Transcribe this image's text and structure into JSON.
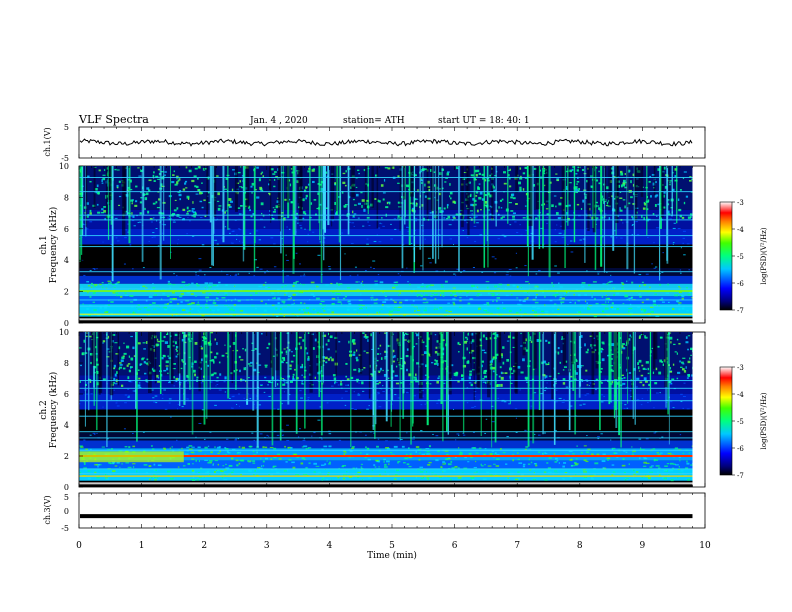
{
  "header": {
    "title": "VLF  Spectra",
    "date": "Jan. 4  , 2020",
    "station": "station= ATH",
    "start": "start  UT  =   18: 40: 1"
  },
  "chart_data": [
    {
      "type": "line",
      "name": "ch1-waveform",
      "ylabel": "ch.1(V)",
      "ylim": [
        -5,
        5
      ],
      "yticks": [
        5,
        -5
      ],
      "xlim": [
        0,
        10
      ],
      "trace_level": 0,
      "trace_span_min": [
        0,
        9.8
      ]
    },
    {
      "type": "heatmap",
      "name": "ch1-spectrogram",
      "ylabel": "ch.1\nFrequency  (kHz)",
      "ylim": [
        0,
        10
      ],
      "yticks": [
        0,
        2,
        4,
        6,
        8,
        10
      ],
      "xlim": [
        0,
        10
      ],
      "data_span_min": [
        0,
        9.8
      ],
      "colorbar": {
        "label": "log(PSD)(V²/Hz)",
        "range": [
          -7,
          -3
        ],
        "ticks": [
          "-3",
          "-4",
          "-5",
          "-6",
          "-7"
        ]
      }
    },
    {
      "type": "heatmap",
      "name": "ch2-spectrogram",
      "ylabel": "ch.2\nFrequency  (kHz)",
      "ylim": [
        0,
        10
      ],
      "yticks": [
        0,
        2,
        4,
        6,
        8,
        10
      ],
      "xlim": [
        0,
        10
      ],
      "data_span_min": [
        0,
        9.8
      ],
      "colorbar": {
        "label": "log(PSD)(V²/Hz)",
        "range": [
          -7,
          -3
        ],
        "ticks": [
          "-3",
          "-4",
          "-5",
          "-6",
          "-7"
        ]
      }
    },
    {
      "type": "line",
      "name": "ch3-waveform",
      "ylabel": "ch.3(V)",
      "ylim": [
        -5,
        5
      ],
      "yticks": [
        5,
        0,
        -5
      ],
      "xlim": [
        0,
        10
      ],
      "trace_level": -1.6,
      "trace_span_min": [
        0,
        9.8
      ]
    }
  ],
  "xaxis": {
    "label": "Time  (min)",
    "ticks": [
      "0",
      "1",
      "2",
      "3",
      "4",
      "5",
      "6",
      "7",
      "8",
      "9",
      "10"
    ]
  }
}
